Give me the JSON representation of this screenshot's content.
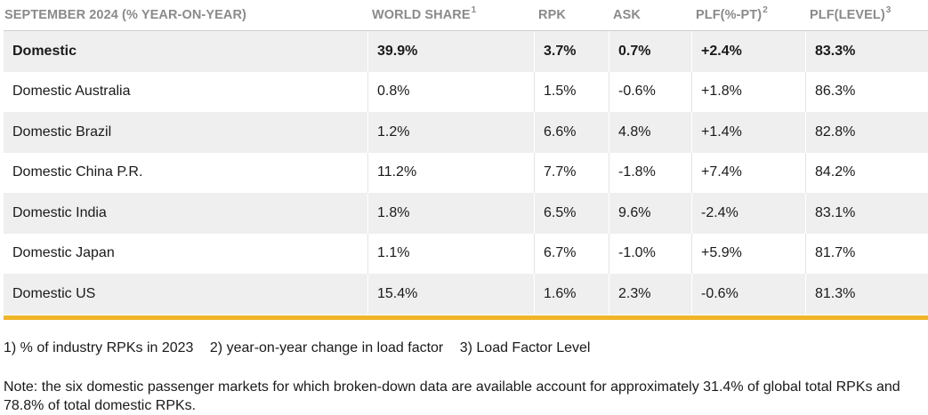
{
  "table": {
    "headers": [
      {
        "label": "SEPTEMBER 2024 (% YEAR-ON-YEAR)",
        "sup": ""
      },
      {
        "label": "WORLD SHARE",
        "sup": "1"
      },
      {
        "label": "RPK",
        "sup": ""
      },
      {
        "label": "ASK",
        "sup": ""
      },
      {
        "label": "PLF(%-PT)",
        "sup": "2"
      },
      {
        "label": "PLF(LEVEL)",
        "sup": "3"
      }
    ],
    "rows": [
      {
        "market": "Domestic",
        "world_share": "39.9%",
        "rpk": "3.7%",
        "ask": "0.7%",
        "plf_pt": "+2.4%",
        "plf_level": "83.3%"
      },
      {
        "market": "Domestic Australia",
        "world_share": "0.8%",
        "rpk": "1.5%",
        "ask": "-0.6%",
        "plf_pt": "+1.8%",
        "plf_level": "86.3%"
      },
      {
        "market": "Domestic Brazil",
        "world_share": "1.2%",
        "rpk": "6.6%",
        "ask": "4.8%",
        "plf_pt": "+1.4%",
        "plf_level": "82.8%"
      },
      {
        "market": "Domestic China P.R.",
        "world_share": "11.2%",
        "rpk": "7.7%",
        "ask": "-1.8%",
        "plf_pt": "+7.4%",
        "plf_level": "84.2%"
      },
      {
        "market": "Domestic India",
        "world_share": "1.8%",
        "rpk": "6.5%",
        "ask": "9.6%",
        "plf_pt": "-2.4%",
        "plf_level": "83.1%"
      },
      {
        "market": "Domestic Japan",
        "world_share": "1.1%",
        "rpk": "6.7%",
        "ask": "-1.0%",
        "plf_pt": "+5.9%",
        "plf_level": "81.7%"
      },
      {
        "market": "Domestic US",
        "world_share": "15.4%",
        "rpk": "1.6%",
        "ask": "2.3%",
        "plf_pt": "-0.6%",
        "plf_level": "81.3%"
      }
    ]
  },
  "footnotes": [
    "1) % of industry RPKs in 2023",
    "2) year-on-year change in load factor",
    "3) Load Factor Level"
  ],
  "note": "Note: the six domestic passenger markets for which broken-down data are available account for approximately 31.4% of global total RPKs and 78.8% of total domestic RPKs.",
  "colors": {
    "accent_rule": "#f0b429",
    "shade": "#efefef",
    "header_text": "#8a8a8a"
  }
}
